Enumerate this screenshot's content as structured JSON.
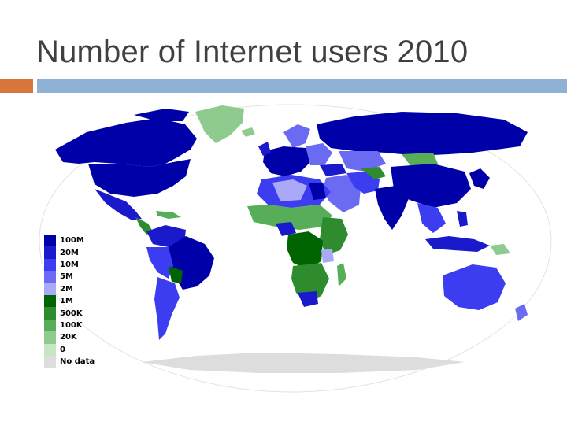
{
  "slide": {
    "title": "Number of Internet users 2010",
    "accent_color": "#D9763C",
    "line_color": "#8FB1D4"
  },
  "map": {
    "ocean_color": "#FFFFFF",
    "no_data_color": "#DDDDDD",
    "legend": [
      {
        "label": "100M",
        "color": "#0000A8"
      },
      {
        "label": "20M",
        "color": "#1A1ACC"
      },
      {
        "label": "10M",
        "color": "#3C3CF0"
      },
      {
        "label": "5M",
        "color": "#6A6AF2"
      },
      {
        "label": "2M",
        "color": "#A9A9F7"
      },
      {
        "label": "1M",
        "color": "#006400"
      },
      {
        "label": "500K",
        "color": "#2E8B2E"
      },
      {
        "label": "100K",
        "color": "#58AE58"
      },
      {
        "label": "20K",
        "color": "#8FCB8F"
      },
      {
        "label": "0",
        "color": "#C6E6C6"
      },
      {
        "label": "No data",
        "color": "#DDDDDD"
      }
    ]
  }
}
